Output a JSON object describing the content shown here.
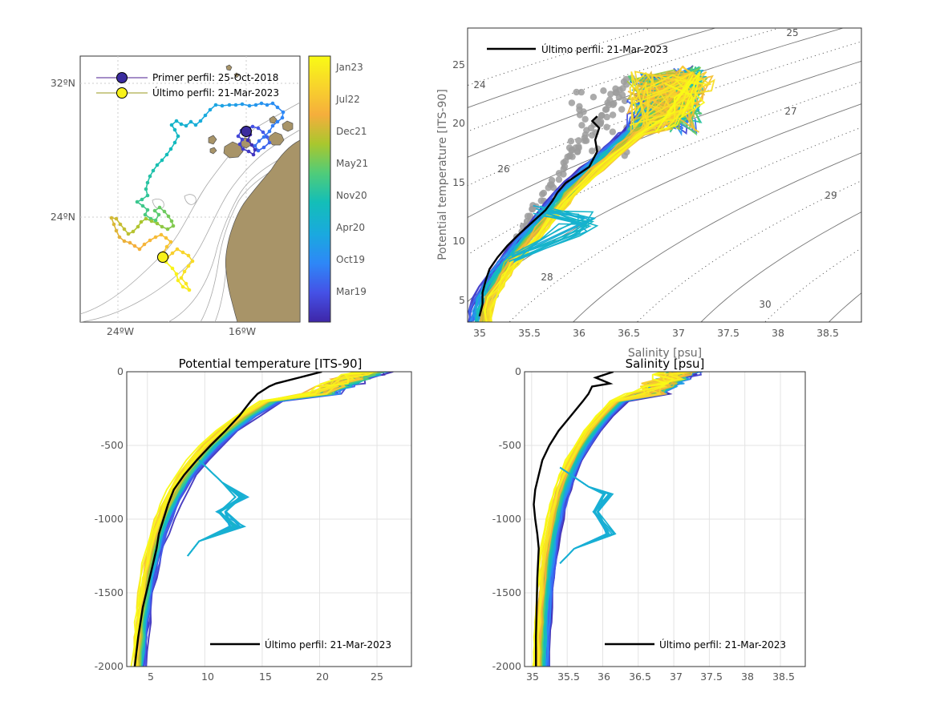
{
  "chart_data": [
    {
      "type": "map",
      "panel": "map",
      "x_ticks": [
        "24ºW",
        "16ºW"
      ],
      "y_ticks": [
        "32ºN",
        "24ºN"
      ],
      "legend": [
        {
          "label": "Primer perfil: 25-Oct-2018",
          "line_color": "#4b1d91",
          "marker_color": "#3b2c9e"
        },
        {
          "label": "Último perfil: 21-Mar-2023",
          "line_color": "#9a9a1e",
          "marker_color": "#f8f21a"
        }
      ],
      "colorbar_labels": [
        "Jan23",
        "Jul22",
        "Dec21",
        "May21",
        "Nov20",
        "Apr20",
        "Oct19",
        "Mar19"
      ],
      "colormap": [
        "#3e26a8",
        "#4551e6",
        "#2e87f7",
        "#1aa9df",
        "#13beb8",
        "#50cc79",
        "#a9c72e",
        "#f5ae3c",
        "#f8d52b",
        "#f9fb15"
      ],
      "land_color": "#a89468"
    },
    {
      "type": "scatter-line",
      "panel": "ts-diagram",
      "xlabel": "Salinity [psu]",
      "ylabel": "Potential temperature [ITS-90]",
      "x_ticks": [
        "35",
        "35.5",
        "36",
        "36.5",
        "37",
        "37.5",
        "38",
        "38.5"
      ],
      "y_ticks": [
        "5",
        "10",
        "15",
        "20",
        "25"
      ],
      "xlim": [
        34.9,
        38.85
      ],
      "ylim": [
        3,
        28
      ],
      "density_labels": [
        "24",
        "25",
        "26",
        "27",
        "28",
        "29",
        "30"
      ],
      "legend": [
        "Último perfil: 21-Mar-2023"
      ],
      "last_profile": {
        "salinity": [
          35.02,
          35.05,
          35.05,
          35.08,
          35.12,
          35.2,
          35.3,
          35.42,
          35.55,
          35.68,
          35.75,
          35.8,
          35.88,
          36.0,
          36.12,
          36.2,
          36.18,
          36.22,
          36.15,
          36.2
        ],
        "theta": [
          3.5,
          4.5,
          5.5,
          6.5,
          7.5,
          8.5,
          9.5,
          10.5,
          11.5,
          12.5,
          13.3,
          14.0,
          14.8,
          15.5,
          16.2,
          17.5,
          18.5,
          19.5,
          20.1,
          20.5
        ]
      }
    },
    {
      "type": "line",
      "panel": "temperature-profile",
      "title": "Potential temperature [ITS-90]",
      "x_ticks": [
        "5",
        "10",
        "15",
        "20",
        "25"
      ],
      "y_ticks": [
        "0",
        "-500",
        "-1000",
        "-1500",
        "-2000"
      ],
      "xlim": [
        3.2,
        28
      ],
      "ylim": [
        -2000,
        0
      ],
      "legend": [
        "Último perfil: 21-Mar-2023"
      ],
      "last_profile": {
        "depth": [
          0,
          -40,
          -80,
          -100,
          -120,
          -150,
          -200,
          -300,
          -400,
          -500,
          -600,
          -700,
          -800,
          -900,
          -1000,
          -1100,
          -1200,
          -1400,
          -1600,
          -1800,
          -2000
        ],
        "theta": [
          20.2,
          18.2,
          16.2,
          15.6,
          15.2,
          14.6,
          14.0,
          13.0,
          11.8,
          10.5,
          9.3,
          8.2,
          7.3,
          6.8,
          6.4,
          6.0,
          5.8,
          5.2,
          4.6,
          4.2,
          3.9
        ]
      }
    },
    {
      "type": "line",
      "panel": "salinity-profile",
      "title": "Salinity [psu]",
      "x_ticks": [
        "35",
        "35.5",
        "36",
        "36.5",
        "37",
        "37.5",
        "38",
        "38.5"
      ],
      "y_ticks": [
        "0",
        "-500",
        "-1000",
        "-1500",
        "-2000"
      ],
      "xlim": [
        34.9,
        38.85
      ],
      "ylim": [
        -2000,
        0
      ],
      "legend": [
        "Último perfil: 21-Mar-2023"
      ],
      "last_profile": {
        "depth": [
          0,
          -40,
          -80,
          -100,
          -150,
          -200,
          -300,
          -400,
          -500,
          -600,
          -700,
          -800,
          -900,
          -1000,
          -1100,
          -1200,
          -1400,
          -1600,
          -1800,
          -2000
        ],
        "salinity": [
          36.15,
          35.9,
          36.1,
          35.85,
          35.8,
          35.72,
          35.55,
          35.38,
          35.25,
          35.15,
          35.1,
          35.05,
          35.03,
          35.05,
          35.08,
          35.1,
          35.08,
          35.07,
          35.06,
          35.06
        ]
      }
    }
  ]
}
